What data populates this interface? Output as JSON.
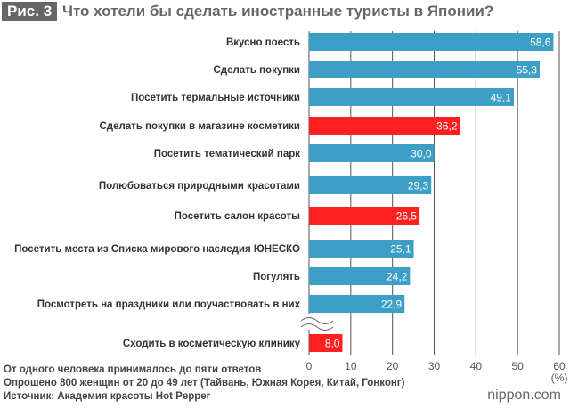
{
  "header": {
    "fig_label": "Рис. 3",
    "title": "Что хотели бы сделать иностранные туристы в Японии?"
  },
  "colors": {
    "default": "#3d9fc6",
    "highlight": "#ff2121"
  },
  "chart_data": {
    "type": "bar",
    "orientation": "horizontal",
    "categories": [
      "Вкусно поесть",
      "Сделать покупки",
      "Посетить термальные источники",
      "Сделать покупки в магазине косметики",
      "Посетить тематический парк",
      "Полюбоваться природными красотами",
      "Посетить салон красоты",
      "Посетить места из Списка мирового наследия ЮНЕСКО",
      "Погулять",
      "Посмотреть на праздники или поучаствовать в них",
      "Сходить в косметическую клинику"
    ],
    "values": [
      58.6,
      55.3,
      49.1,
      36.2,
      30.0,
      29.3,
      26.5,
      25.1,
      24.2,
      22.9,
      8.0
    ],
    "value_labels": [
      "58,6",
      "55,3",
      "49,1",
      "36,2",
      "30,0",
      "29,3",
      "26,5",
      "25,1",
      "24,2",
      "22,9",
      "8,0"
    ],
    "highlighted": [
      false,
      false,
      false,
      true,
      false,
      false,
      true,
      false,
      false,
      false,
      true
    ],
    "xlim": [
      0,
      60
    ],
    "xticks": [
      "0",
      "10",
      "20",
      "30",
      "40",
      "50",
      "60"
    ],
    "xunit": "(%)",
    "grid": true,
    "axis_break_before_last": true
  },
  "footer": {
    "lines": [
      "От одного человека принималось до пяти ответов",
      "Опрошено 800 женщин от 20 до 49 лет (Тайвань, Южная Корея, Китай, Гонконг)",
      "Источник: Академия красоты Hot Pepper"
    ],
    "logo_main": "nippon",
    "logo_dot": ".",
    "logo_end": "com"
  }
}
